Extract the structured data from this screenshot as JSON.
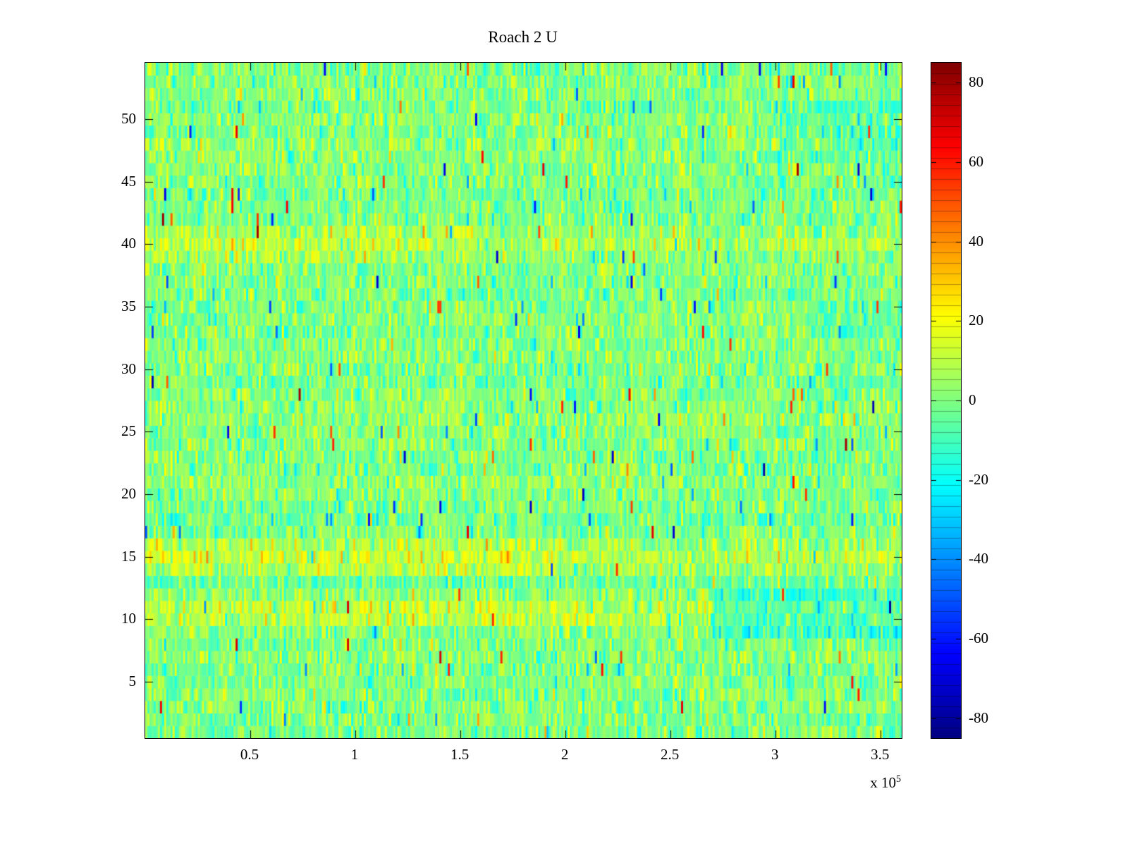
{
  "chart_data": {
    "type": "heatmap",
    "title": "Roach 2 U",
    "xlabel": "",
    "ylabel": "",
    "x_scale": {
      "prefix": "x 10",
      "exponent": "5"
    },
    "x_range": [
      0,
      3.6
    ],
    "x_unit_multiplier": 100000,
    "y_range": [
      0.5,
      54.5
    ],
    "x_tick_values": [
      0.5,
      1,
      1.5,
      2,
      2.5,
      3,
      3.5
    ],
    "x_tick_labels": [
      "0.5",
      "1",
      "1.5",
      "2",
      "2.5",
      "3",
      "3.5"
    ],
    "y_tick_values": [
      5,
      10,
      15,
      20,
      25,
      30,
      35,
      40,
      45,
      50
    ],
    "y_tick_labels": [
      "5",
      "10",
      "15",
      "20",
      "25",
      "30",
      "35",
      "40",
      "45",
      "50"
    ],
    "colorbar": {
      "clim": [
        -85,
        85
      ],
      "tick_values": [
        80,
        60,
        40,
        20,
        0,
        -20,
        -40,
        -60,
        -80
      ],
      "tick_labels": [
        "80",
        "60",
        "40",
        "20",
        "0",
        "-20",
        "-40",
        "-60",
        "-80"
      ],
      "colormap": "jet",
      "segments": 64
    },
    "heatmap": {
      "rows": 54,
      "cols": 360,
      "seed": 1337,
      "noise_std": 9,
      "outlier_prob": 0.012,
      "outlier_base": 20,
      "outlier_scale": 50,
      "row_bias": [
        0,
        -1,
        0,
        1,
        0,
        0,
        1,
        0,
        2,
        6,
        7,
        2,
        -3,
        5,
        9,
        4,
        0,
        -2,
        0,
        1,
        2,
        0,
        -1,
        0,
        1,
        3,
        2,
        0,
        -2,
        0,
        1,
        0,
        0,
        2,
        0,
        -1,
        0,
        1,
        2,
        6,
        3,
        0,
        0,
        -2,
        0,
        1,
        2,
        3,
        0,
        2,
        -2,
        2,
        0,
        -1
      ],
      "patches": [
        {
          "row_min": 9,
          "row_max": 12,
          "x_min": 0.75,
          "x_max": 1.0,
          "bias": -13
        },
        {
          "row_min": 47,
          "row_max": 51,
          "x_min": 0.82,
          "x_max": 1.0,
          "bias": -7
        },
        {
          "row_min": 33,
          "row_max": 35,
          "x_min": 0.88,
          "x_max": 1.0,
          "bias": -5
        },
        {
          "row_min": 39,
          "row_max": 41,
          "x_min": 0.0,
          "x_max": 0.45,
          "bias": 5
        },
        {
          "row_min": 14,
          "row_max": 16,
          "x_min": 0.0,
          "x_max": 0.55,
          "bias": 4
        },
        {
          "row_min": 10,
          "row_max": 11,
          "x_min": 0.0,
          "x_max": 0.6,
          "bias": 4
        }
      ]
    }
  }
}
